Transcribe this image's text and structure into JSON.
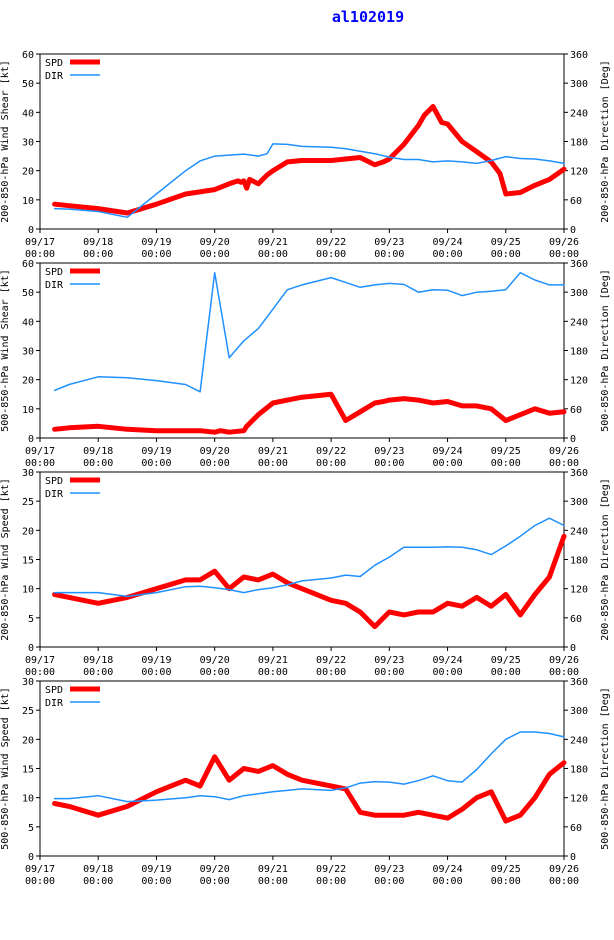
{
  "figure": {
    "title": "al102019"
  },
  "x_tick_labels": [
    {
      "date": "09/17",
      "time": "00:00"
    },
    {
      "date": "09/18",
      "time": "00:00"
    },
    {
      "date": "09/19",
      "time": "00:00"
    },
    {
      "date": "09/20",
      "time": "00:00"
    },
    {
      "date": "09/21",
      "time": "00:00"
    },
    {
      "date": "09/22",
      "time": "00:00"
    },
    {
      "date": "09/23",
      "time": "00:00"
    },
    {
      "date": "09/24",
      "time": "00:00"
    },
    {
      "date": "09/25",
      "time": "00:00"
    },
    {
      "date": "09/26",
      "time": "00:00"
    }
  ],
  "colors": {
    "spd": "#ff0000",
    "dir": "#1e90ff",
    "axis": "#000000",
    "title": "#0000ff"
  },
  "chart_data": [
    {
      "type": "line",
      "ylabel": "200-850-hPa Wind Shear [kt]",
      "y2label": "200-850-hPa Direction [Deg]",
      "ylim": [
        0,
        60
      ],
      "yticks": [
        0,
        10,
        20,
        30,
        40,
        50,
        60
      ],
      "y2lim": [
        0,
        360
      ],
      "y2ticks": [
        0,
        60,
        120,
        180,
        240,
        300,
        360
      ],
      "xlim": [
        0,
        9
      ],
      "legend": {
        "labels": [
          "SPD",
          "DIR"
        ],
        "position": "top-left"
      },
      "series": [
        {
          "name": "SPD",
          "axis": "left",
          "x": [
            0.25,
            0.5,
            1.0,
            1.5,
            2.0,
            2.5,
            3.0,
            3.25,
            3.4,
            3.45,
            3.5,
            3.55,
            3.6,
            3.75,
            3.9,
            4.0,
            4.25,
            4.5,
            5.0,
            5.25,
            5.5,
            5.75,
            5.9,
            6.0,
            6.25,
            6.5,
            6.6,
            6.75,
            6.9,
            7.0,
            7.25,
            7.5,
            7.75,
            7.9,
            8.0,
            8.25,
            8.5,
            8.75,
            9.0
          ],
          "values": [
            8.5,
            8,
            7,
            5.5,
            8.5,
            12,
            13.5,
            15.5,
            16.5,
            16,
            16.5,
            14,
            17,
            15.5,
            18.5,
            20,
            23,
            23.5,
            23.5,
            24,
            24.5,
            22,
            23,
            24,
            29,
            35.5,
            39,
            42,
            36.5,
            36,
            30,
            26.5,
            23,
            19,
            12,
            12.5,
            15,
            17,
            20.5
          ]
        },
        {
          "name": "DIR",
          "axis": "right",
          "x": [
            0.25,
            0.5,
            1.0,
            1.5,
            2.0,
            2.5,
            2.75,
            3.0,
            3.25,
            3.5,
            3.75,
            3.9,
            4.0,
            4.25,
            4.5,
            5.0,
            5.25,
            5.5,
            5.75,
            6.0,
            6.25,
            6.5,
            6.75,
            7.0,
            7.25,
            7.5,
            7.75,
            8.0,
            8.25,
            8.5,
            8.75,
            9.0
          ],
          "values": [
            42,
            41,
            36,
            24,
            72,
            120,
            140,
            150,
            152,
            154,
            150,
            155,
            175,
            174,
            170,
            168,
            165,
            160,
            155,
            148,
            143,
            143,
            138,
            140,
            138,
            135,
            141,
            149,
            145,
            144,
            140,
            135
          ]
        }
      ]
    },
    {
      "type": "line",
      "ylabel": "500-850-hPa Wind Shear [kt]",
      "y2label": "500-850-hPa Direction [Deg]",
      "ylim": [
        0,
        60
      ],
      "yticks": [
        0,
        10,
        20,
        30,
        40,
        50,
        60
      ],
      "y2lim": [
        0,
        360
      ],
      "y2ticks": [
        0,
        60,
        120,
        180,
        240,
        300,
        360
      ],
      "xlim": [
        0,
        9
      ],
      "legend": {
        "labels": [
          "SPD",
          "DIR"
        ],
        "position": "top-left"
      },
      "series": [
        {
          "name": "SPD",
          "axis": "left",
          "x": [
            0.25,
            0.5,
            1.0,
            1.5,
            2.0,
            2.5,
            2.75,
            3.0,
            3.1,
            3.25,
            3.5,
            3.55,
            3.6,
            3.75,
            4.0,
            4.25,
            4.5,
            5.0,
            5.25,
            5.5,
            5.75,
            5.9,
            6.0,
            6.25,
            6.5,
            6.75,
            7.0,
            7.25,
            7.5,
            7.75,
            8.0,
            8.25,
            8.5,
            8.75,
            9.0
          ],
          "values": [
            3,
            3.5,
            4,
            3,
            2.5,
            2.5,
            2.5,
            2,
            2.5,
            2,
            2.5,
            4,
            5,
            8,
            12,
            13,
            14,
            15,
            6,
            9,
            12,
            12.5,
            13,
            13.5,
            13,
            12,
            12.5,
            11,
            11,
            10,
            6,
            8,
            10,
            8.5,
            9
          ]
        },
        {
          "name": "DIR",
          "axis": "right",
          "x": [
            0.25,
            0.5,
            1.0,
            1.5,
            2.0,
            2.5,
            2.75,
            3.0,
            3.25,
            3.5,
            3.75,
            4.0,
            4.25,
            4.5,
            5.0,
            5.25,
            5.5,
            5.75,
            6.0,
            6.25,
            6.5,
            6.75,
            7.0,
            7.25,
            7.5,
            7.75,
            8.0,
            8.25,
            8.5,
            8.75,
            9.0
          ],
          "values": [
            98,
            110,
            126,
            124,
            118,
            110,
            95,
            340,
            165,
            200,
            225,
            265,
            305,
            315,
            330,
            320,
            310,
            315,
            318,
            316,
            300,
            305,
            304,
            293,
            300,
            302,
            305,
            340,
            325,
            315,
            315
          ]
        }
      ]
    },
    {
      "type": "line",
      "ylabel": "200-850-hPa Wind Speed [kt]",
      "y2label": "200-850-hPa Direction [Deg]",
      "ylim": [
        0,
        30
      ],
      "yticks": [
        0,
        5,
        10,
        15,
        20,
        25,
        30
      ],
      "y2lim": [
        0,
        360
      ],
      "y2ticks": [
        0,
        60,
        120,
        180,
        240,
        300,
        360
      ],
      "xlim": [
        0,
        9
      ],
      "legend": {
        "labels": [
          "SPD",
          "DIR"
        ],
        "position": "top-left"
      },
      "series": [
        {
          "name": "SPD",
          "axis": "left",
          "x": [
            0.25,
            0.5,
            1.0,
            1.5,
            2.0,
            2.5,
            2.75,
            3.0,
            3.25,
            3.5,
            3.75,
            4.0,
            4.25,
            4.5,
            5.0,
            5.25,
            5.5,
            5.75,
            6.0,
            6.25,
            6.5,
            6.75,
            7.0,
            7.25,
            7.5,
            7.75,
            8.0,
            8.25,
            8.5,
            8.75,
            9.0
          ],
          "values": [
            9,
            8.5,
            7.5,
            8.5,
            10,
            11.5,
            11.5,
            13,
            10,
            12,
            11.5,
            12.5,
            11,
            10,
            8,
            7.5,
            6,
            3.5,
            6,
            5.5,
            6,
            6,
            7.5,
            7,
            8.5,
            7,
            9,
            5.5,
            9,
            12,
            19
          ]
        },
        {
          "name": "DIR",
          "axis": "right",
          "x": [
            0.25,
            0.5,
            1.0,
            1.5,
            2.0,
            2.5,
            2.75,
            3.0,
            3.25,
            3.5,
            3.75,
            4.0,
            4.25,
            4.5,
            5.0,
            5.25,
            5.5,
            5.75,
            6.0,
            6.25,
            6.5,
            6.75,
            7.0,
            7.25,
            7.5,
            7.75,
            8.0,
            8.25,
            8.5,
            8.75,
            9.0
          ],
          "values": [
            112,
            112,
            112,
            104,
            112,
            124,
            125,
            122,
            118,
            112,
            118,
            122,
            128,
            136,
            142,
            148,
            145,
            168,
            185,
            205,
            205,
            205,
            206,
            205,
            200,
            190,
            208,
            228,
            250,
            265,
            250
          ]
        }
      ]
    },
    {
      "type": "line",
      "ylabel": "500-850-hPa Wind Speed [kt]",
      "y2label": "500-850-hPa Direction [Deg]",
      "ylim": [
        0,
        30
      ],
      "yticks": [
        0,
        5,
        10,
        15,
        20,
        25,
        30
      ],
      "y2lim": [
        0,
        360
      ],
      "y2ticks": [
        0,
        60,
        120,
        180,
        240,
        300,
        360
      ],
      "xlim": [
        0,
        9
      ],
      "legend": {
        "labels": [
          "SPD",
          "DIR"
        ],
        "position": "top-left"
      },
      "series": [
        {
          "name": "SPD",
          "axis": "left",
          "x": [
            0.25,
            0.5,
            1.0,
            1.5,
            2.0,
            2.5,
            2.75,
            3.0,
            3.25,
            3.5,
            3.75,
            4.0,
            4.25,
            4.5,
            5.0,
            5.25,
            5.5,
            5.75,
            6.0,
            6.25,
            6.5,
            6.75,
            7.0,
            7.25,
            7.5,
            7.75,
            8.0,
            8.25,
            8.5,
            8.75,
            9.0
          ],
          "values": [
            9,
            8.5,
            7,
            8.5,
            11,
            13,
            12,
            17,
            13,
            15,
            14.5,
            15.5,
            14,
            13,
            12,
            11.5,
            7.5,
            7,
            7,
            7,
            7.5,
            7,
            6.5,
            8,
            10,
            11,
            6,
            7,
            10,
            14,
            16
          ]
        },
        {
          "name": "DIR",
          "axis": "right",
          "x": [
            0.25,
            0.5,
            1.0,
            1.5,
            2.0,
            2.5,
            2.75,
            3.0,
            3.25,
            3.5,
            3.75,
            4.0,
            4.25,
            4.5,
            5.0,
            5.25,
            5.5,
            5.75,
            6.0,
            6.25,
            6.5,
            6.75,
            7.0,
            7.25,
            7.5,
            7.75,
            8.0,
            8.25,
            8.5,
            8.75,
            9.0
          ],
          "values": [
            118,
            118,
            124,
            112,
            115,
            120,
            124,
            122,
            116,
            124,
            128,
            132,
            135,
            138,
            135,
            140,
            150,
            153,
            152,
            148,
            155,
            165,
            155,
            152,
            178,
            210,
            240,
            255,
            255,
            252,
            245
          ]
        }
      ]
    }
  ]
}
